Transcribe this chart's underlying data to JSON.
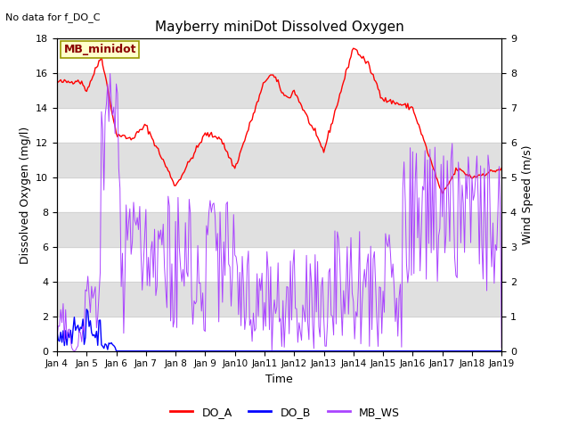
{
  "title": "Mayberry miniDot Dissolved Oxygen",
  "annotation_top_left": "No data for f_DO_C",
  "box_label": "MB_minidot",
  "xlabel": "Time",
  "ylabel_left": "Dissolved Oxygen (mg/l)",
  "ylabel_right": "Wind Speed (m/s)",
  "ylim_left": [
    0,
    18
  ],
  "ylim_right": [
    0.0,
    9.0
  ],
  "yticks_left": [
    0,
    2,
    4,
    6,
    8,
    10,
    12,
    14,
    16,
    18
  ],
  "yticks_right": [
    0.0,
    1.0,
    2.0,
    3.0,
    4.0,
    5.0,
    6.0,
    7.0,
    8.0,
    9.0
  ],
  "xtick_labels": [
    "Jan 4",
    "Jan 5",
    "Jan 6",
    "Jan 7",
    "Jan 8",
    "Jan 9",
    "Jan 10",
    "Jan 11",
    "Jan 12",
    "Jan 13",
    "Jan 14",
    "Jan 15",
    "Jan 16",
    "Jan 17",
    "Jan 18",
    "Jan 19"
  ],
  "xtick_positions": [
    0,
    24,
    48,
    72,
    96,
    120,
    144,
    168,
    192,
    216,
    240,
    264,
    288,
    312,
    336,
    360
  ],
  "color_DOA": "#ff0000",
  "color_DOB": "#0000ff",
  "color_MBWS": "#aa44ff",
  "legend_labels": [
    "DO_A",
    "DO_B",
    "MB_WS"
  ],
  "gray_bands": [
    [
      2,
      4
    ],
    [
      6,
      8
    ],
    [
      10,
      12
    ],
    [
      14,
      16
    ]
  ],
  "background_color": "#ffffff",
  "band_color": "#e0e0e0",
  "figsize": [
    6.4,
    4.8
  ],
  "dpi": 100
}
